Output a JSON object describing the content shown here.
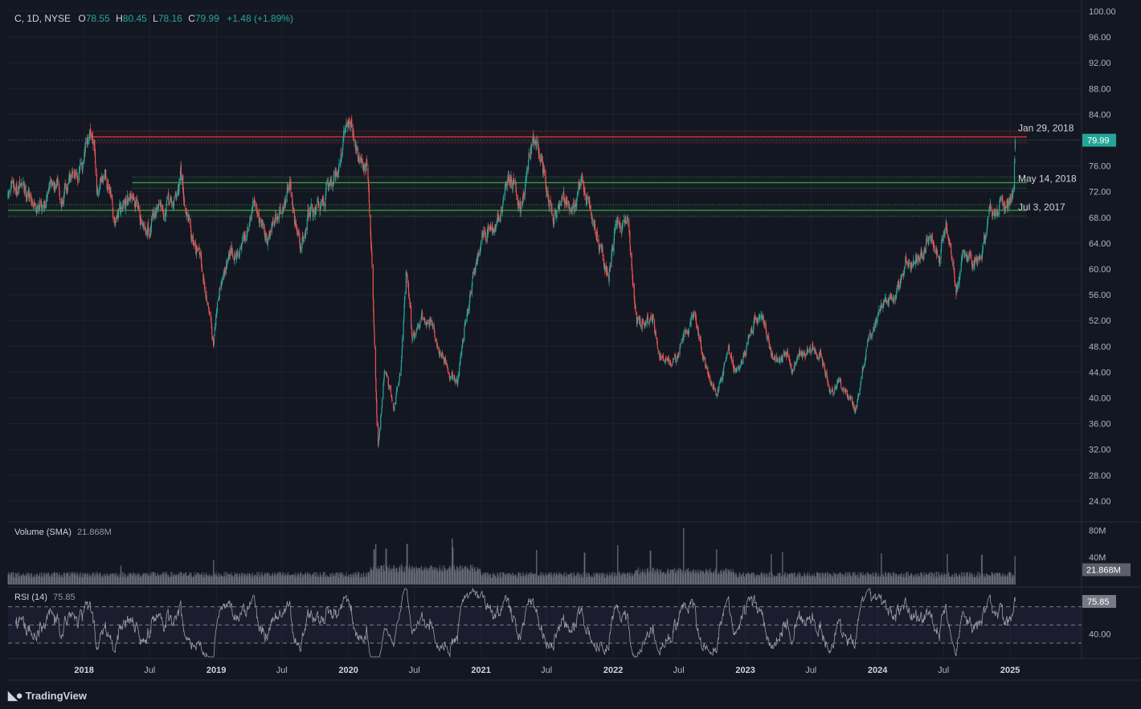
{
  "header": {
    "symbol": "C, 1D, NYSE",
    "open_label": "O",
    "open": "78.55",
    "high_label": "H",
    "high": "80.45",
    "low_label": "L",
    "low": "78.16",
    "close_label": "C",
    "close": "79.99",
    "change": "+1.48 (+1.89%)"
  },
  "brand": "TradingView",
  "colors": {
    "background": "#131722",
    "up": "#26a69a",
    "down": "#ef5350",
    "resistance": "#e53935",
    "support": "#43a047",
    "rsi_band": "#7e57c2",
    "volume": "#787b86"
  },
  "chart_data": [
    {
      "type": "candlestick",
      "pane": "price",
      "y_ticks": [
        24,
        28,
        32,
        36,
        40,
        44,
        48,
        52,
        56,
        60,
        64,
        68,
        72,
        76,
        80,
        84,
        88,
        92,
        96,
        100
      ],
      "y_tick_labels": [
        "24.00",
        "28.00",
        "32.00",
        "36.00",
        "40.00",
        "44.00",
        "48.00",
        "52.00",
        "56.00",
        "60.00",
        "64.00",
        "68.00",
        "72.00",
        "76.00",
        "80.00",
        "84.00",
        "88.00",
        "92.00",
        "96.00",
        "100.00"
      ],
      "ylim": [
        21,
        100.5
      ],
      "x_ticks": [
        "2018",
        "Jul",
        "2019",
        "Jul",
        "2020",
        "Jul",
        "2021",
        "Jul",
        "2022",
        "Jul",
        "2023",
        "Jul",
        "2024",
        "Jul",
        "2025"
      ],
      "x_tick_dates": [
        "2018-01-01",
        "2018-07-01",
        "2019-01-01",
        "2019-07-01",
        "2020-01-01",
        "2020-07-01",
        "2021-01-01",
        "2021-07-01",
        "2022-01-01",
        "2022-07-01",
        "2023-01-01",
        "2023-07-01",
        "2024-01-01",
        "2024-07-01",
        "2025-01-01"
      ],
      "xlim": [
        "2017-06-05",
        "2025-07-15"
      ],
      "last_price": 79.99,
      "last_price_label": "79.99",
      "price_path": [
        [
          "2017-06-05",
          71
        ],
        [
          "2017-07-03",
          73
        ],
        [
          "2017-08-01",
          72
        ],
        [
          "2017-09-01",
          70
        ],
        [
          "2017-10-02",
          73
        ],
        [
          "2017-11-01",
          72
        ],
        [
          "2017-12-01",
          74
        ],
        [
          "2018-01-02",
          77
        ],
        [
          "2018-01-29",
          80.2
        ],
        [
          "2018-02-09",
          71
        ],
        [
          "2018-03-01",
          74
        ],
        [
          "2018-03-23",
          68
        ],
        [
          "2018-04-16",
          70
        ],
        [
          "2018-05-14",
          73
        ],
        [
          "2018-06-10",
          66
        ],
        [
          "2018-07-05",
          67
        ],
        [
          "2018-08-01",
          71
        ],
        [
          "2018-09-05",
          70
        ],
        [
          "2018-09-25",
          74
        ],
        [
          "2018-10-25",
          65
        ],
        [
          "2018-11-20",
          62
        ],
        [
          "2018-12-24",
          49
        ],
        [
          "2019-01-10",
          57
        ],
        [
          "2019-02-15",
          63
        ],
        [
          "2019-03-20",
          63
        ],
        [
          "2019-04-20",
          70
        ],
        [
          "2019-05-20",
          66
        ],
        [
          "2019-06-25",
          69
        ],
        [
          "2019-07-25",
          73
        ],
        [
          "2019-08-20",
          62
        ],
        [
          "2019-09-15",
          69
        ],
        [
          "2019-10-15",
          70
        ],
        [
          "2019-11-20",
          74
        ],
        [
          "2019-12-20",
          80
        ],
        [
          "2020-01-10",
          82.5
        ],
        [
          "2020-01-28",
          77
        ],
        [
          "2020-02-20",
          76
        ],
        [
          "2020-03-05",
          63
        ],
        [
          "2020-03-20",
          36
        ],
        [
          "2020-03-23",
          33
        ],
        [
          "2020-04-10",
          44
        ],
        [
          "2020-05-05",
          39
        ],
        [
          "2020-05-25",
          45
        ],
        [
          "2020-06-08",
          60
        ],
        [
          "2020-06-25",
          49
        ],
        [
          "2020-07-25",
          52
        ],
        [
          "2020-08-20",
          52
        ],
        [
          "2020-09-20",
          45
        ],
        [
          "2020-10-28",
          42
        ],
        [
          "2020-11-15",
          50
        ],
        [
          "2020-12-10",
          59
        ],
        [
          "2021-01-10",
          66
        ],
        [
          "2021-02-10",
          66
        ],
        [
          "2021-03-15",
          73
        ],
        [
          "2021-04-25",
          71
        ],
        [
          "2021-05-20",
          79
        ],
        [
          "2021-06-02",
          80
        ],
        [
          "2021-06-15",
          76
        ],
        [
          "2021-07-20",
          68
        ],
        [
          "2021-08-20",
          71
        ],
        [
          "2021-09-20",
          71
        ],
        [
          "2021-10-10",
          73
        ],
        [
          "2021-11-15",
          66
        ],
        [
          "2021-12-20",
          59
        ],
        [
          "2022-01-13",
          68
        ],
        [
          "2022-02-10",
          66
        ],
        [
          "2022-03-07",
          53
        ],
        [
          "2022-04-20",
          52
        ],
        [
          "2022-05-10",
          46
        ],
        [
          "2022-06-15",
          45
        ],
        [
          "2022-07-15",
          50
        ],
        [
          "2022-08-15",
          53
        ],
        [
          "2022-09-25",
          42
        ],
        [
          "2022-10-15",
          41
        ],
        [
          "2022-11-15",
          48
        ],
        [
          "2022-12-15",
          44
        ],
        [
          "2023-01-25",
          51
        ],
        [
          "2023-02-15",
          53
        ],
        [
          "2023-03-18",
          45
        ],
        [
          "2023-04-20",
          48
        ],
        [
          "2023-05-15",
          45
        ],
        [
          "2023-06-20",
          47
        ],
        [
          "2023-07-25",
          48
        ],
        [
          "2023-08-20",
          42
        ],
        [
          "2023-09-15",
          42
        ],
        [
          "2023-10-05",
          40
        ],
        [
          "2023-10-30",
          38.5
        ],
        [
          "2023-11-20",
          44
        ],
        [
          "2023-12-20",
          51
        ],
        [
          "2024-01-25",
          55
        ],
        [
          "2024-02-20",
          55
        ],
        [
          "2024-03-20",
          62
        ],
        [
          "2024-04-15",
          61
        ],
        [
          "2024-05-20",
          64
        ],
        [
          "2024-06-20",
          62
        ],
        [
          "2024-07-10",
          66
        ],
        [
          "2024-08-05",
          56
        ],
        [
          "2024-08-25",
          62
        ],
        [
          "2024-09-15",
          61
        ],
        [
          "2024-10-15",
          63
        ],
        [
          "2024-11-06",
          69
        ],
        [
          "2024-12-06",
          72
        ],
        [
          "2024-12-20",
          69
        ],
        [
          "2025-01-10",
          73
        ],
        [
          "2025-01-15",
          79.99
        ]
      ],
      "annotations": [
        {
          "label": "Jan 29, 2018",
          "kind": "resistance",
          "price": 80.5,
          "band": [
            80.1,
            80.9
          ]
        },
        {
          "label": "May 14, 2018",
          "kind": "support",
          "price": 73.4,
          "band": [
            73,
            73.8
          ]
        },
        {
          "label": "Jul 3, 2017",
          "kind": "support",
          "price": 69.1,
          "band": [
            68.7,
            69.5
          ]
        }
      ]
    },
    {
      "type": "bar",
      "pane": "volume",
      "title": "Volume (SMA)",
      "value_label": "21.868M",
      "y_ticks": [
        40,
        80
      ],
      "y_tick_labels": [
        "40M",
        "80M"
      ],
      "ylim": [
        0,
        90
      ],
      "unit": "M",
      "last_value": 21.868,
      "spikes": [
        [
          "2018-04-13",
          28
        ],
        [
          "2018-12-24",
          36
        ],
        [
          "2020-03-12",
          52
        ],
        [
          "2020-03-16",
          60
        ],
        [
          "2020-04-14",
          53
        ],
        [
          "2020-06-11",
          60
        ],
        [
          "2020-10-14",
          68
        ],
        [
          "2020-10-16",
          55
        ],
        [
          "2021-06-04",
          51
        ],
        [
          "2021-10-14",
          47
        ],
        [
          "2022-01-14",
          58
        ],
        [
          "2022-04-14",
          50
        ],
        [
          "2022-07-15",
          83
        ],
        [
          "2022-10-14",
          52
        ],
        [
          "2023-03-13",
          45
        ],
        [
          "2023-04-14",
          48
        ],
        [
          "2024-01-12",
          46
        ],
        [
          "2024-07-12",
          45
        ],
        [
          "2024-10-15",
          44
        ],
        [
          "2025-01-15",
          42
        ]
      ]
    },
    {
      "type": "line",
      "pane": "rsi",
      "title": "RSI (14)",
      "value_label": "75.85",
      "y_ticks": [
        40
      ],
      "y_tick_labels": [
        "40.00"
      ],
      "ylim": [
        15,
        90
      ],
      "band": [
        30,
        70
      ],
      "midline": 50,
      "last_value": 75.85
    }
  ]
}
